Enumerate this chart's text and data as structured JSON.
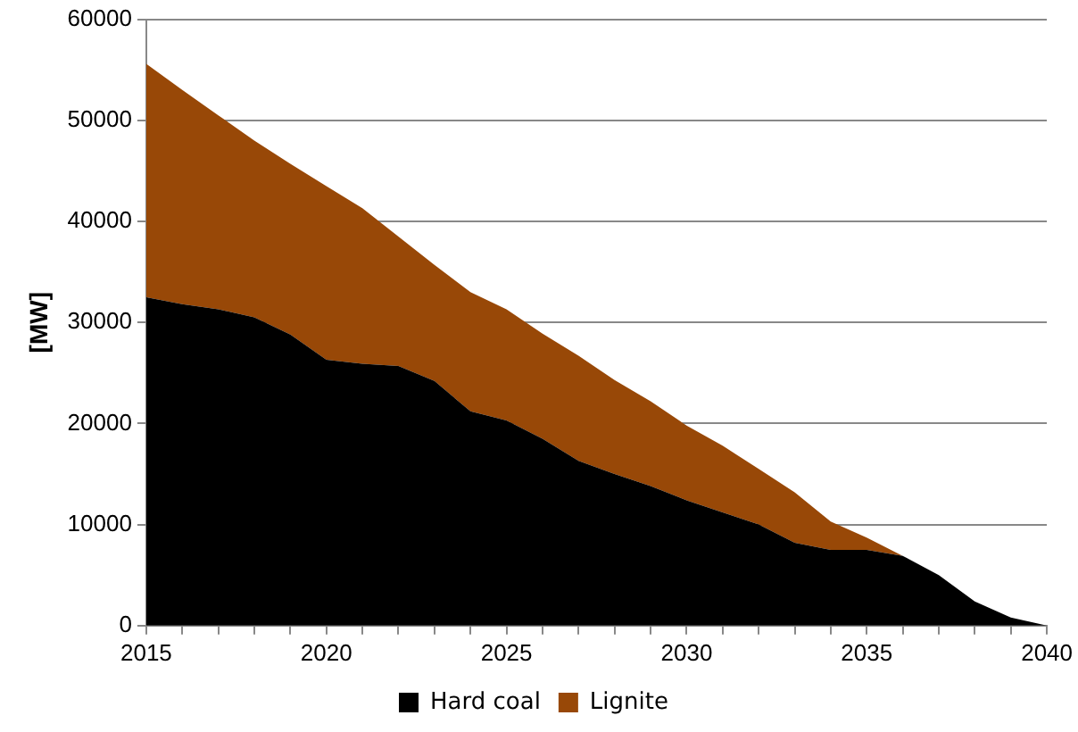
{
  "chart_data": {
    "type": "area",
    "stacked": true,
    "ylabel": "[MW]",
    "x": [
      2015,
      2016,
      2017,
      2018,
      2019,
      2020,
      2021,
      2022,
      2023,
      2024,
      2025,
      2026,
      2027,
      2028,
      2029,
      2030,
      2031,
      2032,
      2033,
      2034,
      2035,
      2036,
      2037,
      2038,
      2039,
      2040
    ],
    "series": [
      {
        "name": "Hard coal",
        "color": "#000000",
        "values": [
          32500,
          31800,
          31300,
          30500,
          28800,
          26300,
          25900,
          25700,
          24200,
          21200,
          20300,
          18500,
          16300,
          15000,
          13800,
          12400,
          11200,
          10000,
          8200,
          7500,
          7500,
          6900,
          5000,
          2400,
          800,
          0
        ]
      },
      {
        "name": "Lignite",
        "color": "#984807",
        "values": [
          23100,
          21200,
          19200,
          17500,
          16900,
          17200,
          15400,
          12800,
          11500,
          11800,
          11000,
          10400,
          10400,
          9300,
          8400,
          7400,
          6600,
          5500,
          5000,
          2800,
          1200,
          0,
          null,
          null,
          null,
          null
        ]
      }
    ],
    "xlim": [
      2015,
      2040
    ],
    "xticks": [
      2015,
      {
        "value": 2016,
        "label": null
      },
      {
        "value": 2017,
        "label": null
      },
      {
        "value": 2018,
        "label": null
      },
      {
        "value": 2019,
        "label": null
      },
      2020,
      {
        "value": 2021,
        "label": null
      },
      {
        "value": 2022,
        "label": null
      },
      {
        "value": 2023,
        "label": null
      },
      {
        "value": 2024,
        "label": null
      },
      2025,
      {
        "value": 2026,
        "label": null
      },
      {
        "value": 2027,
        "label": null
      },
      {
        "value": 2028,
        "label": null
      },
      {
        "value": 2029,
        "label": null
      },
      2030,
      {
        "value": 2031,
        "label": null
      },
      {
        "value": 2032,
        "label": null
      },
      {
        "value": 2033,
        "label": null
      },
      {
        "value": 2034,
        "label": null
      },
      2035,
      {
        "value": 2036,
        "label": null
      },
      {
        "value": 2037,
        "label": null
      },
      {
        "value": 2038,
        "label": null
      },
      {
        "value": 2039,
        "label": null
      },
      2040
    ],
    "ylim": [
      0,
      60000
    ],
    "yticks": [
      0,
      10000,
      20000,
      30000,
      40000,
      50000,
      60000
    ],
    "grid": "y",
    "legend": "bottom"
  }
}
